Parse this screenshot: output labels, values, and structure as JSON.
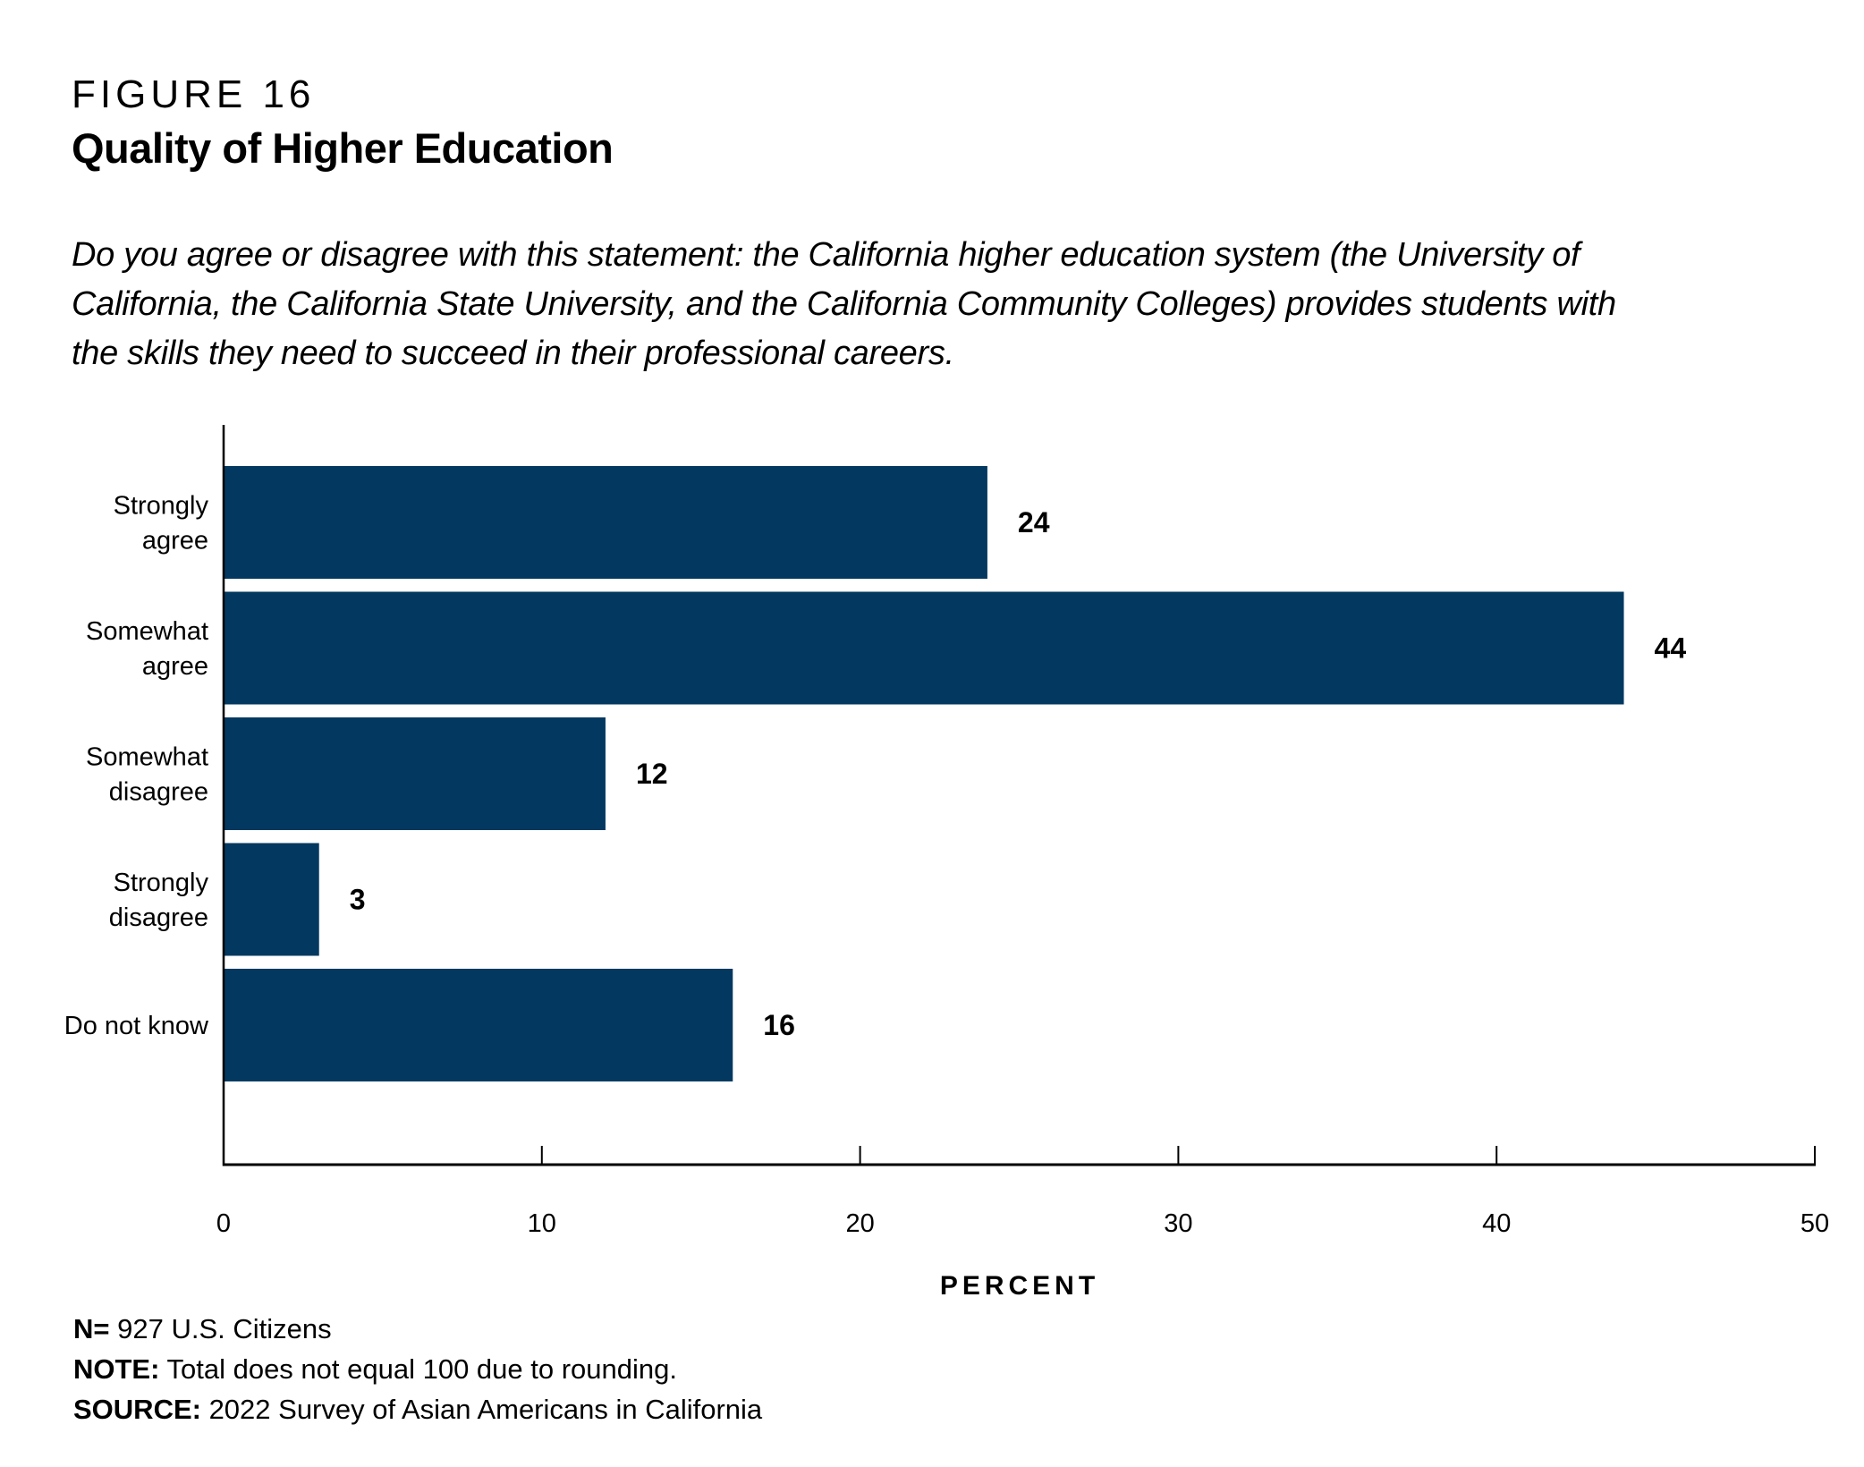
{
  "figure_label": "FIGURE 16",
  "title": "Quality of Higher Education",
  "question_lines": [
    "Do you agree or disagree with this statement: the California higher education system (the University of",
    "California, the California State University, and the California Community Colleges) provides students with",
    "the skills they need to succeed in their professional careers."
  ],
  "colors": {
    "bar": "#033960",
    "axis": "#000000",
    "text": "#000000"
  },
  "chart_data": {
    "type": "bar",
    "orientation": "horizontal",
    "title": "Quality of Higher Education",
    "categories": [
      [
        "Strongly",
        "agree"
      ],
      [
        "Somewhat",
        "agree"
      ],
      [
        "Somewhat",
        "disagree"
      ],
      [
        "Strongly",
        "disagree"
      ],
      [
        "Do not know"
      ]
    ],
    "category_names": [
      "Strongly agree",
      "Somewhat agree",
      "Somewhat disagree",
      "Strongly disagree",
      "Do not know"
    ],
    "values": [
      24,
      44,
      12,
      3,
      16
    ],
    "data_labels": [
      "24",
      "44",
      "12",
      "3",
      "16"
    ],
    "xlabel": "PERCENT",
    "ylabel": "",
    "xlim": [
      0,
      50
    ],
    "xticks": [
      0,
      10,
      20,
      30,
      40,
      50
    ],
    "xtick_labels": [
      "0",
      "10",
      "20",
      "30",
      "40",
      "50"
    ],
    "grid": false,
    "legend": "none"
  },
  "notes": {
    "n": {
      "label": "N=",
      "text": " 927 U.S. Citizens"
    },
    "note": {
      "label": "NOTE:",
      "text": " Total does not equal 100 due to rounding."
    },
    "source": {
      "label": "SOURCE:",
      "text": " 2022 Survey of Asian Americans in California"
    }
  }
}
